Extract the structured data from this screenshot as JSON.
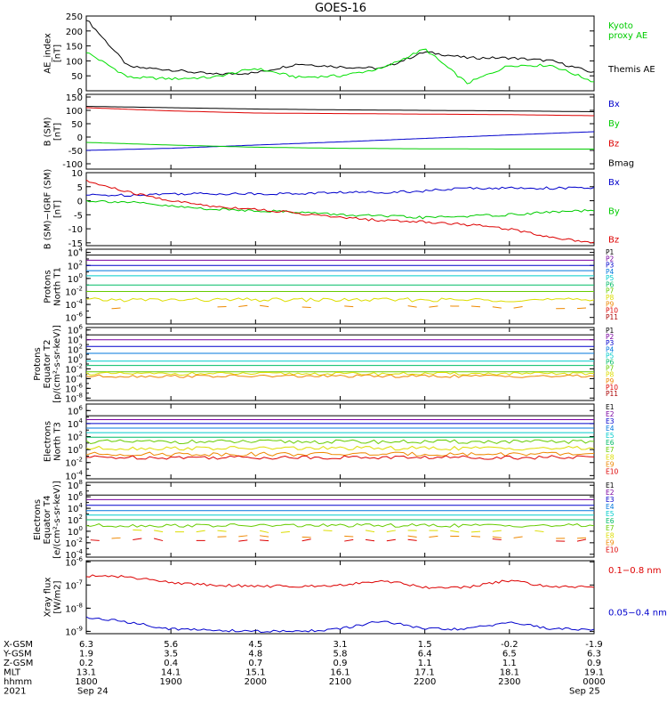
{
  "figure": {
    "title": "GOES-16"
  },
  "chart_data": [
    {
      "id": "ae",
      "type": "line",
      "ylabel_lines": [
        "AE_index",
        "[nT]"
      ],
      "ylim": [
        0,
        250
      ],
      "yticks": [
        "0",
        "50",
        "100",
        "150",
        "200",
        "250"
      ],
      "ytick_values": [
        0,
        50,
        100,
        150,
        200,
        250
      ],
      "x": [
        "1800",
        "1830",
        "1900",
        "1930",
        "2000",
        "2030",
        "2100",
        "2130",
        "2200",
        "2230",
        "2300",
        "2330",
        "0000"
      ],
      "series": [
        {
          "name": "Themis AE",
          "color": "#000000",
          "values": [
            240,
            80,
            70,
            55,
            60,
            90,
            80,
            75,
            130,
            110,
            110,
            100,
            60
          ]
        },
        {
          "name": "Kyoto proxy AE",
          "color": "#00e000",
          "values": [
            130,
            45,
            40,
            45,
            75,
            45,
            50,
            75,
            140,
            25,
            85,
            85,
            30
          ]
        }
      ],
      "legend_labels": [
        [
          "Kyoto",
          "proxy AE"
        ],
        [
          "Themis AE"
        ]
      ],
      "legend_colors": [
        "#00cc00",
        "#000000"
      ]
    },
    {
      "id": "bsm",
      "type": "line",
      "ylabel_lines": [
        "B (SM)",
        "[nT]"
      ],
      "ylim": [
        -120,
        160
      ],
      "yticks": [
        "-100",
        "-50",
        "0",
        "50",
        "100",
        "150"
      ],
      "ytick_values": [
        -100,
        -50,
        0,
        50,
        100,
        150
      ],
      "x": [
        "1800",
        "1900",
        "2000",
        "2100",
        "2200",
        "2300",
        "0000"
      ],
      "series": [
        {
          "name": "Bx",
          "color": "#0000cc",
          "values": [
            -50,
            -42,
            -30,
            -18,
            -5,
            8,
            20
          ]
        },
        {
          "name": "By",
          "color": "#00cc00",
          "values": [
            -20,
            -30,
            -38,
            -42,
            -44,
            -45,
            -45
          ]
        },
        {
          "name": "Bz",
          "color": "#dd0000",
          "values": [
            110,
            98,
            90,
            88,
            86,
            84,
            80
          ]
        },
        {
          "name": "Bmag",
          "color": "#000000",
          "values": [
            115,
            110,
            105,
            102,
            100,
            98,
            95
          ]
        }
      ],
      "legend_labels": [
        [
          "Bx"
        ],
        [
          "By"
        ],
        [
          "Bz"
        ],
        [
          "Bmag"
        ]
      ],
      "legend_colors": [
        "#0000cc",
        "#00cc00",
        "#dd0000",
        "#000000"
      ]
    },
    {
      "id": "bigrf",
      "type": "line",
      "ylabel_lines": [
        "B (SM)−IGRF (SM)",
        "[nT]"
      ],
      "ylim": [
        -16,
        10
      ],
      "yticks": [
        "-15",
        "-10",
        "-5",
        "0",
        "5",
        "10"
      ],
      "ytick_values": [
        -15,
        -10,
        -5,
        0,
        5,
        10
      ],
      "x": [
        "1800",
        "1830",
        "1900",
        "1930",
        "2000",
        "2030",
        "2100",
        "2130",
        "2200",
        "2230",
        "2300",
        "2330",
        "0000"
      ],
      "series": [
        {
          "name": "Bx",
          "color": "#0000cc",
          "values": [
            2,
            2,
            2.5,
            2.5,
            2.5,
            2.5,
            3,
            3,
            3.5,
            4.5,
            4.5,
            4.5,
            4.5
          ]
        },
        {
          "name": "By",
          "color": "#00cc00",
          "values": [
            0,
            -0.5,
            -2,
            -3,
            -3.5,
            -4,
            -5,
            -5.5,
            -6,
            -5.5,
            -5,
            -4,
            -3.5
          ]
        },
        {
          "name": "Bz",
          "color": "#dd0000",
          "values": [
            7,
            3,
            0,
            -2,
            -3,
            -4.5,
            -6,
            -7,
            -7.5,
            -8.5,
            -10,
            -13,
            -15
          ]
        }
      ],
      "legend_labels": [
        [
          "Bx"
        ],
        [
          "By"
        ],
        [
          "Bz"
        ]
      ],
      "legend_colors": [
        "#0000cc",
        "#00cc00",
        "#dd0000"
      ]
    },
    {
      "id": "prot_north",
      "type": "line",
      "log": true,
      "ylabel_lines": [
        "Protons",
        "North T1"
      ],
      "yticks_exp": [
        "4",
        "2",
        "0",
        "-2",
        "-4",
        "-6"
      ],
      "ytick_values": [
        4,
        2,
        0,
        -2,
        -4,
        -6
      ],
      "ylim": [
        -7,
        4.5
      ],
      "series_labels": [
        "P1",
        "P2",
        "P3",
        "P4",
        "P5",
        "P6",
        "P7",
        "P8",
        "P9",
        "P10",
        "P11"
      ],
      "series_colors": [
        "#000000",
        "#7a00a0",
        "#0000cc",
        "#0077dd",
        "#00cccc",
        "#00bb66",
        "#66cc00",
        "#dddd00",
        "#ee8800",
        "#dd0000",
        "#aa0000"
      ],
      "levels": [
        3.6,
        2.8,
        2.0,
        1.2,
        0.4,
        -1.0,
        -2.0,
        -3.3,
        -4.4,
        null,
        null
      ],
      "short_segments": true
    },
    {
      "id": "prot_eq",
      "type": "line",
      "log": true,
      "ylabel_lines": [
        "Protons",
        "Equator T2",
        "[p/(cm²-s-sr-keV)]"
      ],
      "yticks_exp": [
        "6",
        "4",
        "2",
        "0",
        "-2",
        "-4",
        "-6",
        "-8"
      ],
      "ytick_values": [
        6,
        4,
        2,
        0,
        -2,
        -4,
        -6,
        -8
      ],
      "ylim": [
        -8.5,
        6.5
      ],
      "series_labels": [
        "P1",
        "P2",
        "P3",
        "P4",
        "P5",
        "P6",
        "P7",
        "P8",
        "P9",
        "P10",
        "P11"
      ],
      "series_colors": [
        "#000000",
        "#7a00a0",
        "#0000cc",
        "#0077dd",
        "#00cccc",
        "#00bb66",
        "#66cc00",
        "#dddd00",
        "#ee8800",
        "#dd0000",
        "#aa0000"
      ],
      "levels": [
        5.0,
        4.0,
        2.6,
        1.2,
        -0.4,
        -1.3,
        -2.6,
        -3.0,
        -3.5,
        null,
        null
      ],
      "short_segments": false
    },
    {
      "id": "elec_north",
      "type": "line",
      "log": true,
      "ylabel_lines": [
        "Electrons",
        "North T3"
      ],
      "yticks_exp": [
        "6",
        "4",
        "2",
        "0",
        "-2",
        "-4"
      ],
      "ytick_values": [
        6,
        4,
        2,
        0,
        -2,
        -4
      ],
      "ylim": [
        -4.5,
        7
      ],
      "series_labels": [
        "E1",
        "E2",
        "E3",
        "E4",
        "E5",
        "E6",
        "E7",
        "E8",
        "E9",
        "E10"
      ],
      "series_colors": [
        "#000000",
        "#7a00a0",
        "#0000cc",
        "#0077dd",
        "#00cccc",
        "#00bb66",
        "#66cc00",
        "#dddd00",
        "#ee8800",
        "#dd0000"
      ],
      "levels": [
        5.2,
        4.6,
        4.0,
        3.3,
        2.6,
        1.9,
        1.2,
        0.2,
        -0.7,
        -1.2
      ],
      "short_segments": false
    },
    {
      "id": "elec_eq",
      "type": "line",
      "log": true,
      "ylabel_lines": [
        "Electrons",
        "Equator T4",
        "[e/(cm²-s-sr-keV)]"
      ],
      "yticks_exp": [
        "8",
        "6",
        "4",
        "2",
        "0",
        "-2",
        "-4"
      ],
      "ytick_values": [
        8,
        6,
        4,
        2,
        0,
        -2,
        -4
      ],
      "ylim": [
        -4.5,
        8.5
      ],
      "series_labels": [
        "E1",
        "E2",
        "E3",
        "E4",
        "E5",
        "E6",
        "E7",
        "E8",
        "E9",
        "E10"
      ],
      "series_colors": [
        "#000000",
        "#7a00a0",
        "#0000cc",
        "#0077dd",
        "#00cccc",
        "#00bb66",
        "#66cc00",
        "#dddd00",
        "#ee8800",
        "#dd0000"
      ],
      "levels": [
        6.3,
        5.5,
        4.5,
        3.6,
        2.8,
        2.0,
        1.0,
        0.0,
        -1.0,
        -1.5
      ],
      "short_segments": true
    },
    {
      "id": "xray",
      "type": "line",
      "log": true,
      "ylabel_lines": [
        "Xray flux",
        "[W/m2]"
      ],
      "yticks_exp": [
        "-6",
        "-7",
        "-8",
        "-9"
      ],
      "ytick_values": [
        -6,
        -7,
        -8,
        -9
      ],
      "ylim": [
        -9.1,
        -5.95
      ],
      "x": [
        "1800",
        "1830",
        "1900",
        "1930",
        "2000",
        "2030",
        "2100",
        "2130",
        "2200",
        "2230",
        "2300",
        "2330",
        "0000"
      ],
      "series": [
        {
          "name": "0.1-0.8 nm",
          "color": "#dd0000",
          "values": [
            -6.6,
            -6.65,
            -6.9,
            -7.0,
            -7.05,
            -7.05,
            -7.0,
            -6.8,
            -7.1,
            -7.1,
            -6.8,
            -7.1,
            -7.05
          ]
        },
        {
          "name": "0.05-0.4 nm",
          "color": "#0000cc",
          "values": [
            -8.4,
            -8.6,
            -8.9,
            -8.95,
            -9.0,
            -9.0,
            -8.9,
            -8.55,
            -8.9,
            -8.9,
            -8.6,
            -8.9,
            -8.9
          ]
        }
      ],
      "legend_labels": [
        [
          "0.1−0.8 nm"
        ],
        [
          "0.05−0.4 nm"
        ]
      ],
      "legend_colors": [
        "#dd0000",
        "#0000cc"
      ]
    }
  ],
  "xaxis": {
    "row_labels": [
      "X-GSM",
      "Y-GSM",
      "Z-GSM",
      "MLT",
      "hhmm",
      "2021"
    ],
    "columns": [
      [
        "6.3",
        "1.9",
        "0.2",
        "13.1",
        "1800",
        "Sep 24"
      ],
      [
        "5.6",
        "3.5",
        "0.4",
        "14.1",
        "1900",
        ""
      ],
      [
        "4.5",
        "4.8",
        "0.7",
        "15.1",
        "2000",
        ""
      ],
      [
        "3.1",
        "5.8",
        "0.9",
        "16.1",
        "2100",
        ""
      ],
      [
        "1.5",
        "6.4",
        "1.1",
        "17.1",
        "2200",
        ""
      ],
      [
        "-0.2",
        "6.5",
        "1.1",
        "18.1",
        "2300",
        ""
      ],
      [
        "-1.9",
        "6.3",
        "0.9",
        "19.1",
        "0000",
        "Sep 25"
      ]
    ]
  }
}
